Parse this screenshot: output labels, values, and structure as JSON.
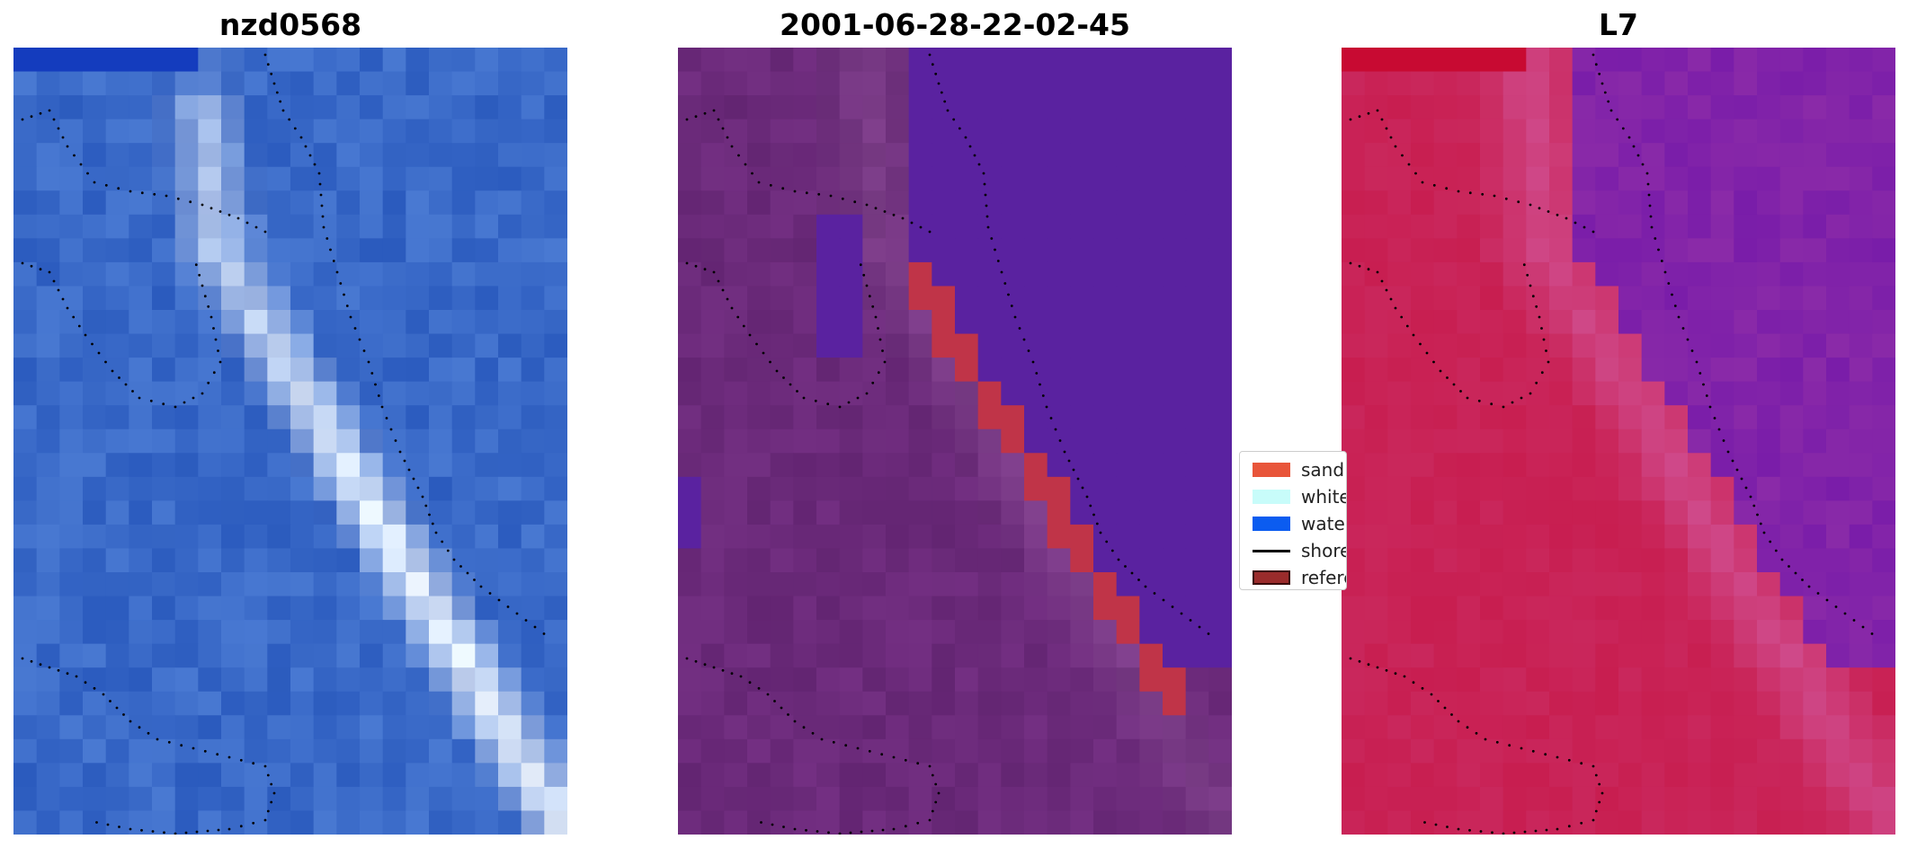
{
  "panels": [
    {
      "title": "nzd0568",
      "kind": "rgb"
    },
    {
      "title": "2001-06-28-22-02-45",
      "kind": "classified"
    },
    {
      "title": "L7",
      "kind": "index"
    }
  ],
  "legend": {
    "items": [
      {
        "label": "sand",
        "color": "#e8553a",
        "type": "patch"
      },
      {
        "label": "white-water",
        "color": "#c8fcfa",
        "type": "patch"
      },
      {
        "label": "water",
        "color": "#0b5cf0",
        "type": "patch"
      },
      {
        "label": "shoreline",
        "color": "#000000",
        "type": "line"
      },
      {
        "label": "reference shoreline",
        "color": "#9a2b2b",
        "type": "patch"
      }
    ]
  },
  "colors": {
    "rgb_base": "#3a6ac8",
    "rgb_highlight": "#eef6ff",
    "classified_land": "#6b2a7a",
    "classified_water": "#5a22a0",
    "classified_sand": "#c03448",
    "index_land": "#c81e50",
    "index_water": "#8a2aa8",
    "shoreline_dots": "#000000"
  }
}
